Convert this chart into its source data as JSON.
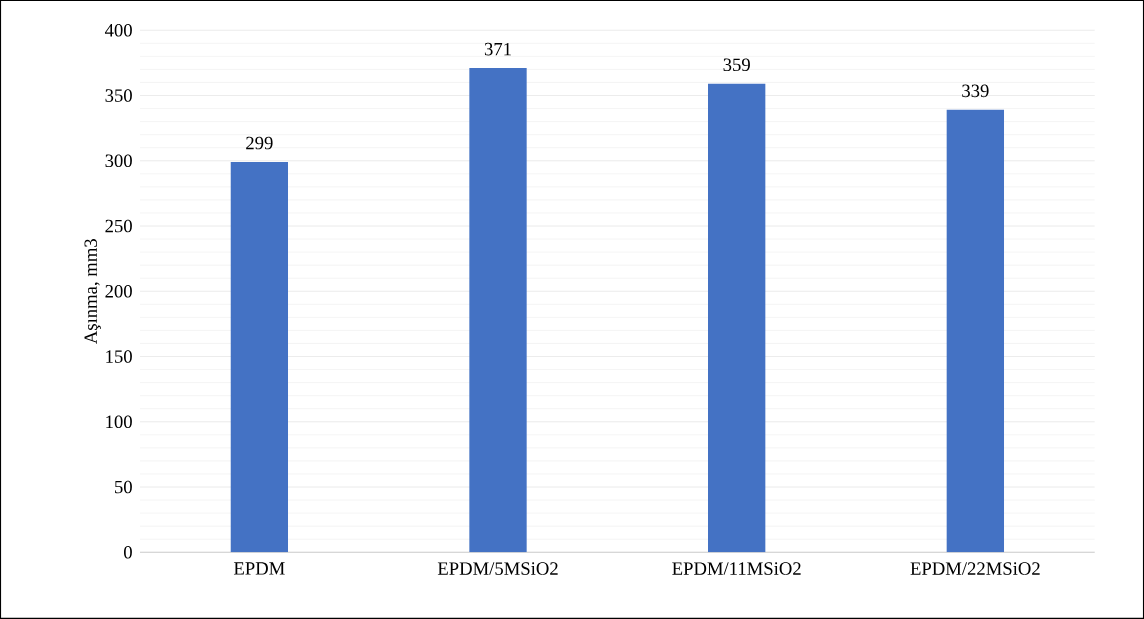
{
  "chart_data": {
    "type": "bar",
    "ylabel": "Aşınma, mm3",
    "categories": [
      "EPDM",
      "EPDM/5MSiO2",
      "EPDM/11MSiO2",
      "EPDM/22MSiO2"
    ],
    "values": [
      299,
      371,
      359,
      339
    ],
    "color": "#4472c4",
    "ylim": [
      0,
      400
    ],
    "yticks": [
      0,
      50,
      100,
      150,
      200,
      250,
      300,
      350,
      400
    ],
    "grid": "y",
    "data_labels": true
  }
}
